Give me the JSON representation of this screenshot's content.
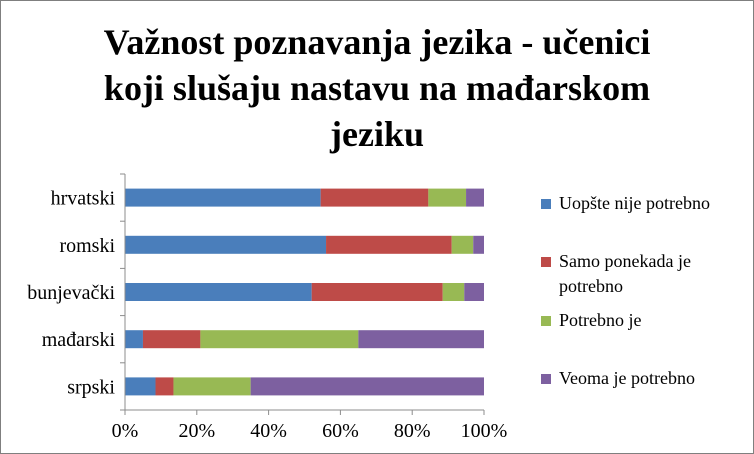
{
  "chart_data": {
    "type": "bar",
    "orientation": "horizontal",
    "stacked": "percent",
    "title": "Važnost poznavanja jezika - učenici koji slušaju nastavu na mađarskom jeziku",
    "categories": [
      "hrvatski",
      "romski",
      "bunjevački",
      "mađarski",
      "srpski"
    ],
    "series": [
      {
        "name": "Uopšte nije potrebno",
        "color": "#4a7ebb",
        "values": [
          54.5,
          56,
          52,
          5,
          8.5
        ]
      },
      {
        "name": "Samo ponekada je potrebno",
        "color": "#be4b48",
        "values": [
          30,
          35,
          36.5,
          16,
          5
        ]
      },
      {
        "name": "Potrebno je",
        "color": "#98b954",
        "values": [
          10.5,
          6,
          6,
          44,
          21.5
        ]
      },
      {
        "name": "Veoma je potrebno",
        "color": "#7d60a0",
        "values": [
          5,
          3,
          5.5,
          35,
          65
        ]
      }
    ],
    "x_ticks": [
      "0%",
      "20%",
      "40%",
      "60%",
      "80%",
      "100%"
    ],
    "xlim": [
      0,
      100
    ],
    "grid": false,
    "legend_position": "right"
  }
}
